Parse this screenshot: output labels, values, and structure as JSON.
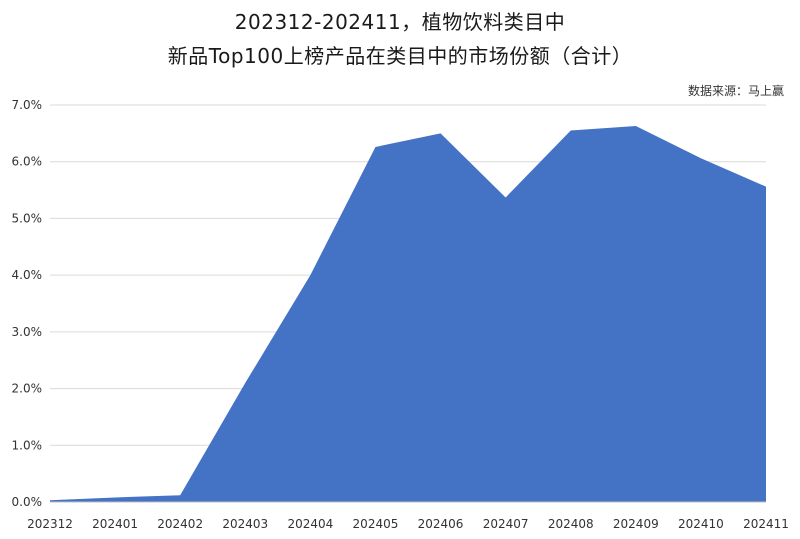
{
  "title": {
    "line1": "202312-202411，植物饮料类目中",
    "line2": "新品Top100上榜产品在类目中的市场份额（合计）"
  },
  "source": "数据来源：马上赢",
  "colors": {
    "area_fill": "#4472C4",
    "grid": "#D9D9D9",
    "axis": "#BFBFBF"
  },
  "chart_data": {
    "type": "area",
    "categories": [
      "202312",
      "202401",
      "202402",
      "202403",
      "202404",
      "202405",
      "202406",
      "202407",
      "202408",
      "202409",
      "202410",
      "202411"
    ],
    "values": [
      0.0003,
      0.0008,
      0.0012,
      0.021,
      0.04,
      0.0626,
      0.065,
      0.0537,
      0.0655,
      0.0663,
      0.0606,
      0.0556
    ],
    "y_ticks": [
      "0.0%",
      "1.0%",
      "2.0%",
      "3.0%",
      "4.0%",
      "5.0%",
      "6.0%",
      "7.0%"
    ],
    "ylim": [
      0,
      0.07
    ],
    "grid": true,
    "legend": "none"
  }
}
